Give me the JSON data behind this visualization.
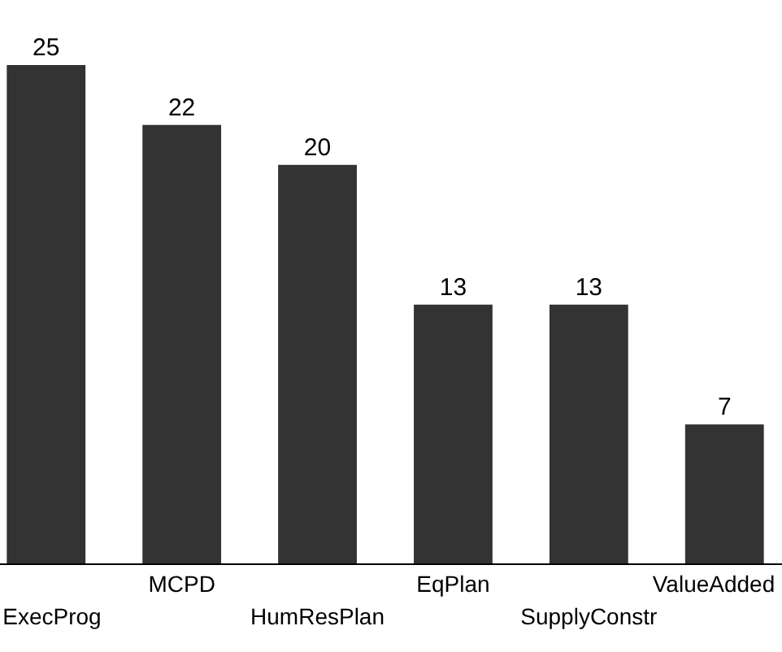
{
  "chart_data": {
    "type": "bar",
    "categories": [
      "ExecProg",
      "MCPD",
      "HumResPlan",
      "EqPlan",
      "SupplyConstr",
      "ValueAdded"
    ],
    "values": [
      25,
      22,
      20,
      13,
      13,
      7
    ],
    "color": "#333333",
    "data_labels": true
  }
}
